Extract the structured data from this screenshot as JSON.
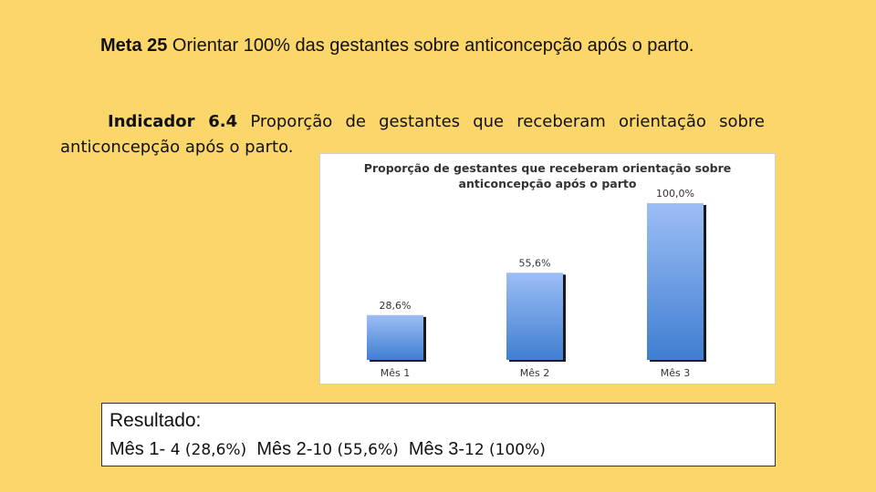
{
  "meta": {
    "label": "Meta 25",
    "text": " Orientar 100% das gestantes sobre anticoncepção após o parto."
  },
  "indicador": {
    "label": "Indicador 6.4",
    "text": " Proporção de gestantes que receberam orientação sobre anticoncepção após o parto."
  },
  "chart_data": {
    "type": "bar",
    "title": "Proporção de gestantes que receberam orientação sobre anticoncepção após o parto",
    "title_lines": [
      "Proporção de gestantes que receberam orientação sobre",
      "anticoncepção após o parto"
    ],
    "categories": [
      "Mês 1",
      "Mês 2",
      "Mês 3"
    ],
    "values": [
      28.6,
      55.6,
      100.0
    ],
    "data_labels": [
      "28,6%",
      "55,6%",
      "100,0%"
    ],
    "ylim": [
      0,
      100
    ],
    "grid": false,
    "legend": "none",
    "bar_color_top": "#9DBEF5",
    "bar_color_bottom": "#3F7ED1"
  },
  "resultado": {
    "title": "Resultado:",
    "items": [
      {
        "label": "Mês 1- ",
        "value": "4 (28,6%)"
      },
      {
        "label": "Mês 2-",
        "value": "10 (55,6%)"
      },
      {
        "label": "Mês 3-",
        "value": "12 (100%)"
      }
    ]
  }
}
